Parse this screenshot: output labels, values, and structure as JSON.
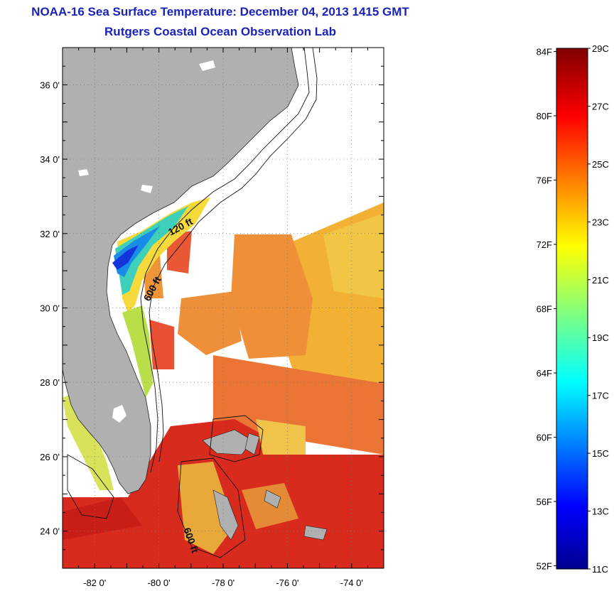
{
  "header": {
    "title": "NOAA-16 Sea Surface Temperature:  December 04, 2013 1415 GMT",
    "subtitle": "Rutgers Coastal Ocean Observation Lab"
  },
  "map": {
    "lon_ticks": [
      "-82 0'",
      "-80 0'",
      "-78 0'",
      "-76 0'",
      "-74 0'"
    ],
    "lat_ticks": [
      "36 0'",
      "34 0'",
      "32 0'",
      "30 0'",
      "28 0'",
      "26 0'",
      "24 0'"
    ],
    "lon_range": [
      -83,
      -73
    ],
    "lat_range": [
      23,
      37
    ],
    "grid": "dotted",
    "isobath_labels": [
      "120 ft",
      "600 ft",
      "600 ft"
    ],
    "colors": {
      "land": "#b0b0b0",
      "ocean_no_data": "#ffffff"
    }
  },
  "colorbar": {
    "fahrenheit_labels": [
      "84F",
      "80F",
      "76F",
      "72F",
      "68F",
      "64F",
      "60F",
      "56F",
      "52F"
    ],
    "celsius_labels": [
      "29C",
      "27C",
      "25C",
      "23C",
      "21C",
      "19C",
      "17C",
      "15C",
      "13C",
      "11C"
    ],
    "range_c": [
      11,
      29
    ],
    "colormap": "jet"
  }
}
